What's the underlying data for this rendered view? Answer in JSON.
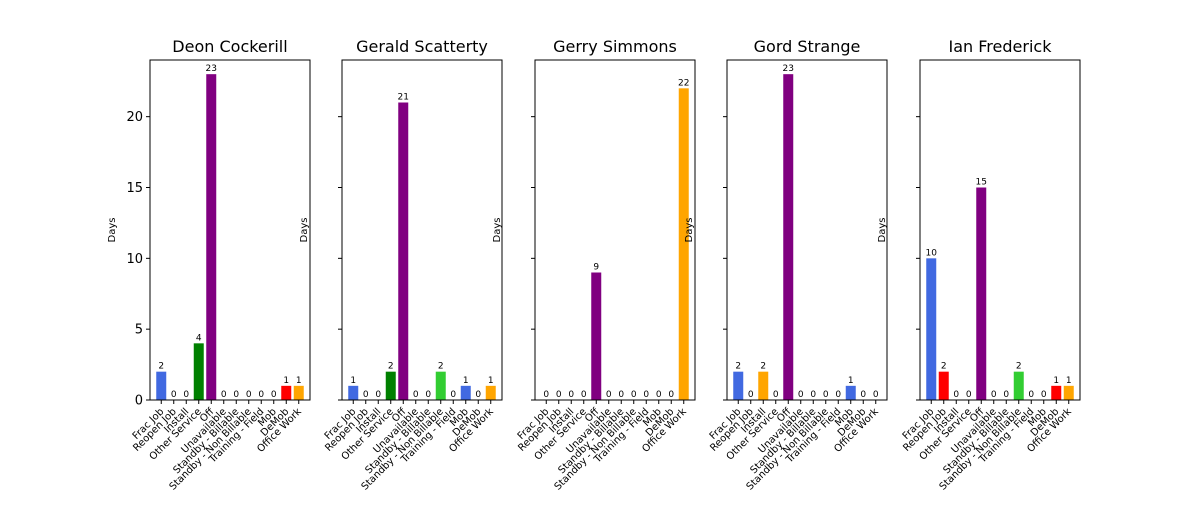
{
  "chart_data": {
    "type": "bar",
    "ylim": [
      0,
      24
    ],
    "yticks": [
      0,
      5,
      10,
      15,
      20
    ],
    "ylabel": "Days",
    "categories": [
      "Frac Job",
      "Reopen Job",
      "Install",
      "Other Service",
      "Off",
      "Unavailable",
      "Standby - Billable",
      "Standby - Non Billable",
      "Training - Field",
      "Mob",
      "DeMob",
      "Office Work"
    ],
    "colors": [
      "#4169e1",
      "#ff0000",
      "#ffa500",
      "#008000",
      "#800080",
      "#800080",
      "#32cd32",
      "#32cd32",
      "#32cd32",
      "#4169e1",
      "#ff0000",
      "#ffa500"
    ],
    "panels": [
      {
        "title": "Deon Cockerill",
        "values": [
          2,
          0,
          0,
          4,
          23,
          0,
          0,
          0,
          0,
          0,
          1,
          1
        ]
      },
      {
        "title": "Gerald Scatterty",
        "values": [
          1,
          0,
          0,
          2,
          21,
          0,
          0,
          2,
          0,
          1,
          0,
          1
        ]
      },
      {
        "title": "Gerry Simmons",
        "values": [
          0,
          0,
          0,
          0,
          9,
          0,
          0,
          0,
          0,
          0,
          0,
          22
        ]
      },
      {
        "title": "Gord Strange",
        "values": [
          2,
          0,
          2,
          0,
          23,
          0,
          0,
          0,
          0,
          1,
          0,
          0
        ]
      },
      {
        "title": "Ian Frederick",
        "values": [
          10,
          2,
          0,
          0,
          15,
          0,
          0,
          2,
          0,
          0,
          1,
          1
        ]
      }
    ]
  }
}
